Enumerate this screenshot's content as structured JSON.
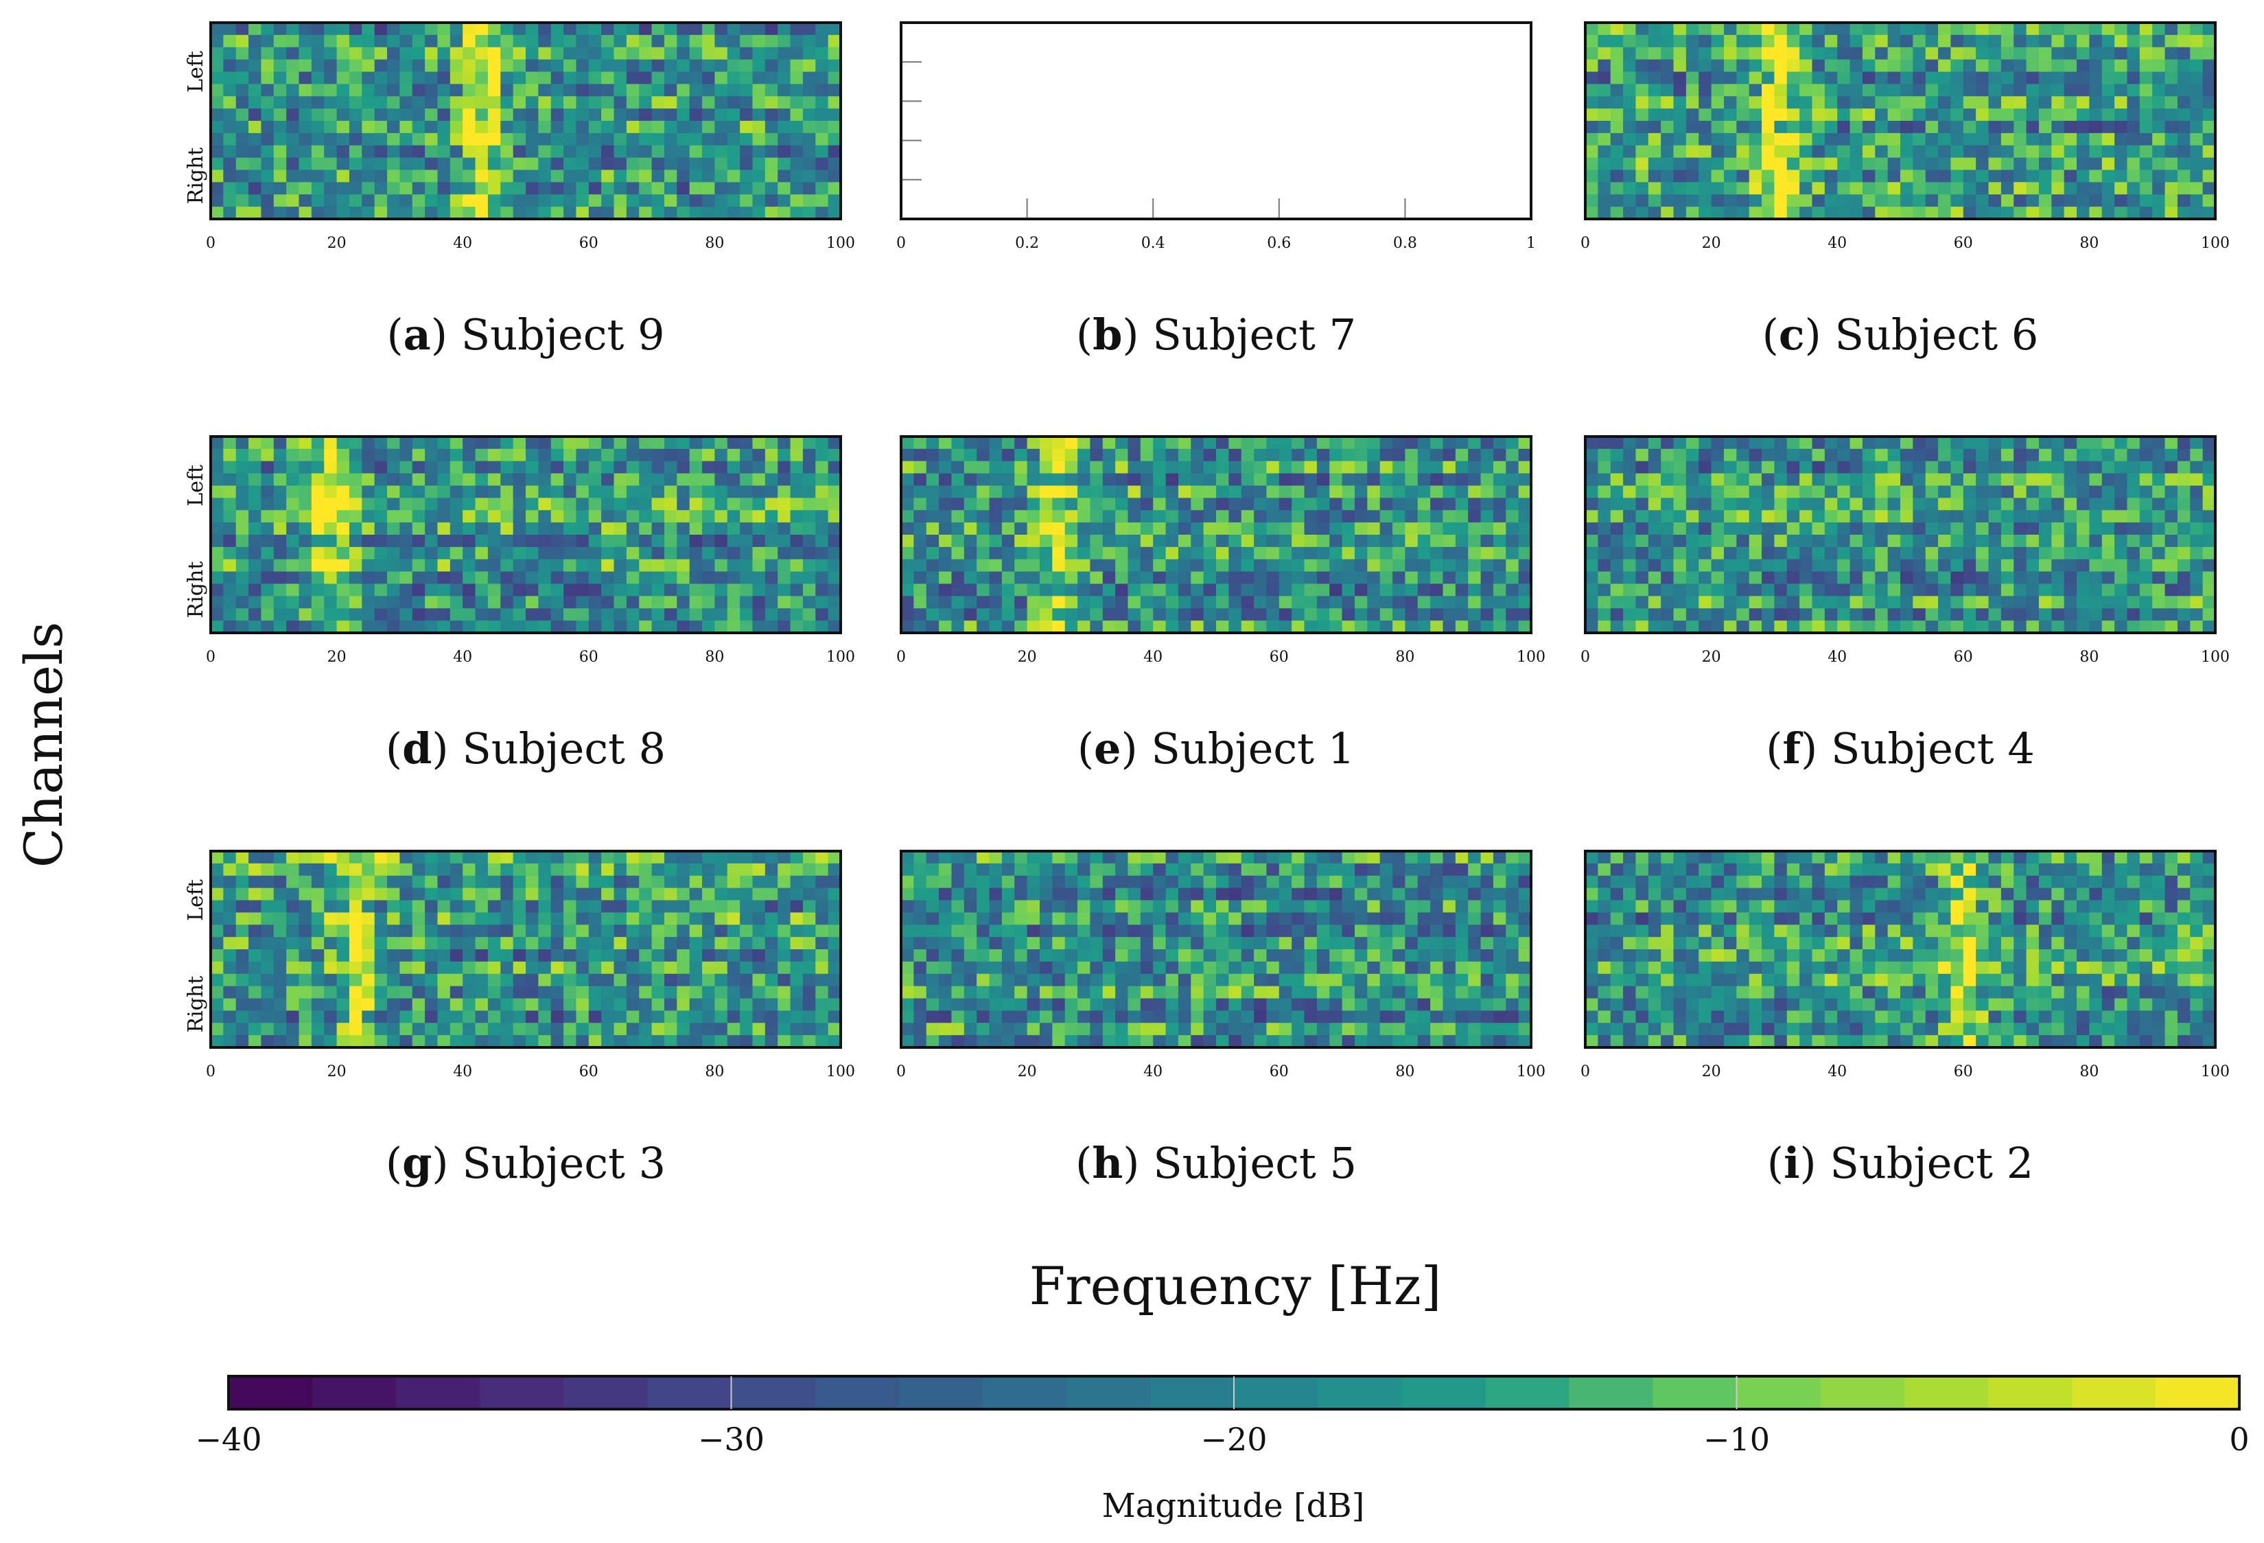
{
  "figure": {
    "y_axis_label": "Channels",
    "x_axis_label": "Frequency [Hz]"
  },
  "colors": {
    "viridis": [
      "#440154",
      "#482777",
      "#3f4a8a",
      "#31678e",
      "#26838f",
      "#1f9d8a",
      "#6cce5a",
      "#b6de2b",
      "#fee825"
    ],
    "frame": "#111111"
  },
  "chart_data": {
    "type": "heatmap",
    "panels": [
      {
        "letter": "a",
        "caption": "Subject 9",
        "empty": false,
        "xticks": [
          "0",
          "20",
          "40",
          "60",
          "80",
          "100"
        ],
        "xlim": [
          0,
          100
        ],
        "yticklabels": [
          "Left",
          "Right"
        ],
        "seed": 9,
        "bright_band_hz": 43
      },
      {
        "letter": "b",
        "caption": "Subject 7",
        "empty": true,
        "xticks": [
          "0",
          "0.2",
          "0.4",
          "0.6",
          "0.8",
          "1"
        ],
        "xlim": [
          0,
          1
        ],
        "yticklabels": [],
        "seed": 7,
        "bright_band_hz": null
      },
      {
        "letter": "c",
        "caption": "Subject 6",
        "empty": false,
        "xticks": [
          "0",
          "20",
          "40",
          "60",
          "80",
          "100"
        ],
        "xlim": [
          0,
          100
        ],
        "yticklabels": [],
        "seed": 6,
        "bright_band_hz": 30
      },
      {
        "letter": "d",
        "caption": "Subject 8",
        "empty": false,
        "xticks": [
          "0",
          "20",
          "40",
          "60",
          "80",
          "100"
        ],
        "xlim": [
          0,
          100
        ],
        "yticklabels": [
          "Left",
          "Right"
        ],
        "seed": 8,
        "bright_band_hz": 19
      },
      {
        "letter": "e",
        "caption": "Subject 1",
        "empty": false,
        "xticks": [
          "0",
          "20",
          "40",
          "60",
          "80",
          "100"
        ],
        "xlim": [
          0,
          100
        ],
        "yticklabels": [],
        "seed": 1,
        "bright_band_hz": 25
      },
      {
        "letter": "f",
        "caption": "Subject 4",
        "empty": false,
        "xticks": [
          "0",
          "20",
          "40",
          "60",
          "80",
          "100"
        ],
        "xlim": [
          0,
          100
        ],
        "yticklabels": [],
        "seed": 4,
        "bright_band_hz": null
      },
      {
        "letter": "g",
        "caption": "Subject 3",
        "empty": false,
        "xticks": [
          "0",
          "20",
          "40",
          "60",
          "80",
          "100"
        ],
        "xlim": [
          0,
          100
        ],
        "yticklabels": [
          "Left",
          "Right"
        ],
        "seed": 3,
        "bright_band_hz": 23
      },
      {
        "letter": "h",
        "caption": "Subject 5",
        "empty": false,
        "xticks": [
          "0",
          "20",
          "40",
          "60",
          "80",
          "100"
        ],
        "xlim": [
          0,
          100
        ],
        "yticklabels": [],
        "seed": 5,
        "bright_band_hz": null
      },
      {
        "letter": "i",
        "caption": "Subject 2",
        "empty": false,
        "xticks": [
          "0",
          "20",
          "40",
          "60",
          "80",
          "100"
        ],
        "xlim": [
          0,
          100
        ],
        "yticklabels": [],
        "seed": 2,
        "bright_band_hz": 60
      }
    ],
    "grid": {
      "rows": 16,
      "cols": 50
    },
    "value_range": [
      -40,
      0
    ],
    "colorbar": {
      "label": "Magnitude [dB]",
      "ticks": [
        "−40",
        "−30",
        "−20",
        "−10",
        "0"
      ],
      "tick_values": [
        -40,
        -30,
        -20,
        -10,
        0
      ],
      "steps": 24
    }
  }
}
